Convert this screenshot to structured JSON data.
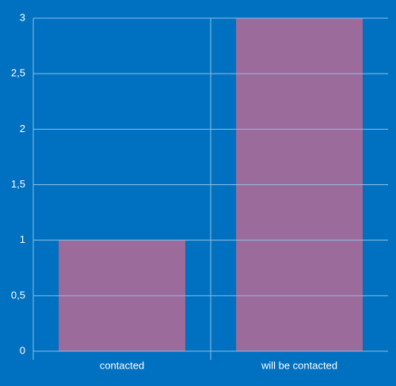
{
  "chart_data": {
    "type": "bar",
    "categories": [
      "contacted",
      "will be contacted"
    ],
    "values": [
      1,
      3
    ],
    "color": "#9b6b9b",
    "background": "#0070c0",
    "ylim": [
      0,
      3
    ],
    "yticks": [
      0,
      {
        "value": 0.5,
        "label": "0,5"
      },
      1,
      {
        "value": 1.5,
        "label": "1,5"
      },
      2,
      {
        "value": 2.5,
        "label": "2,5"
      },
      3
    ],
    "grid": true
  }
}
